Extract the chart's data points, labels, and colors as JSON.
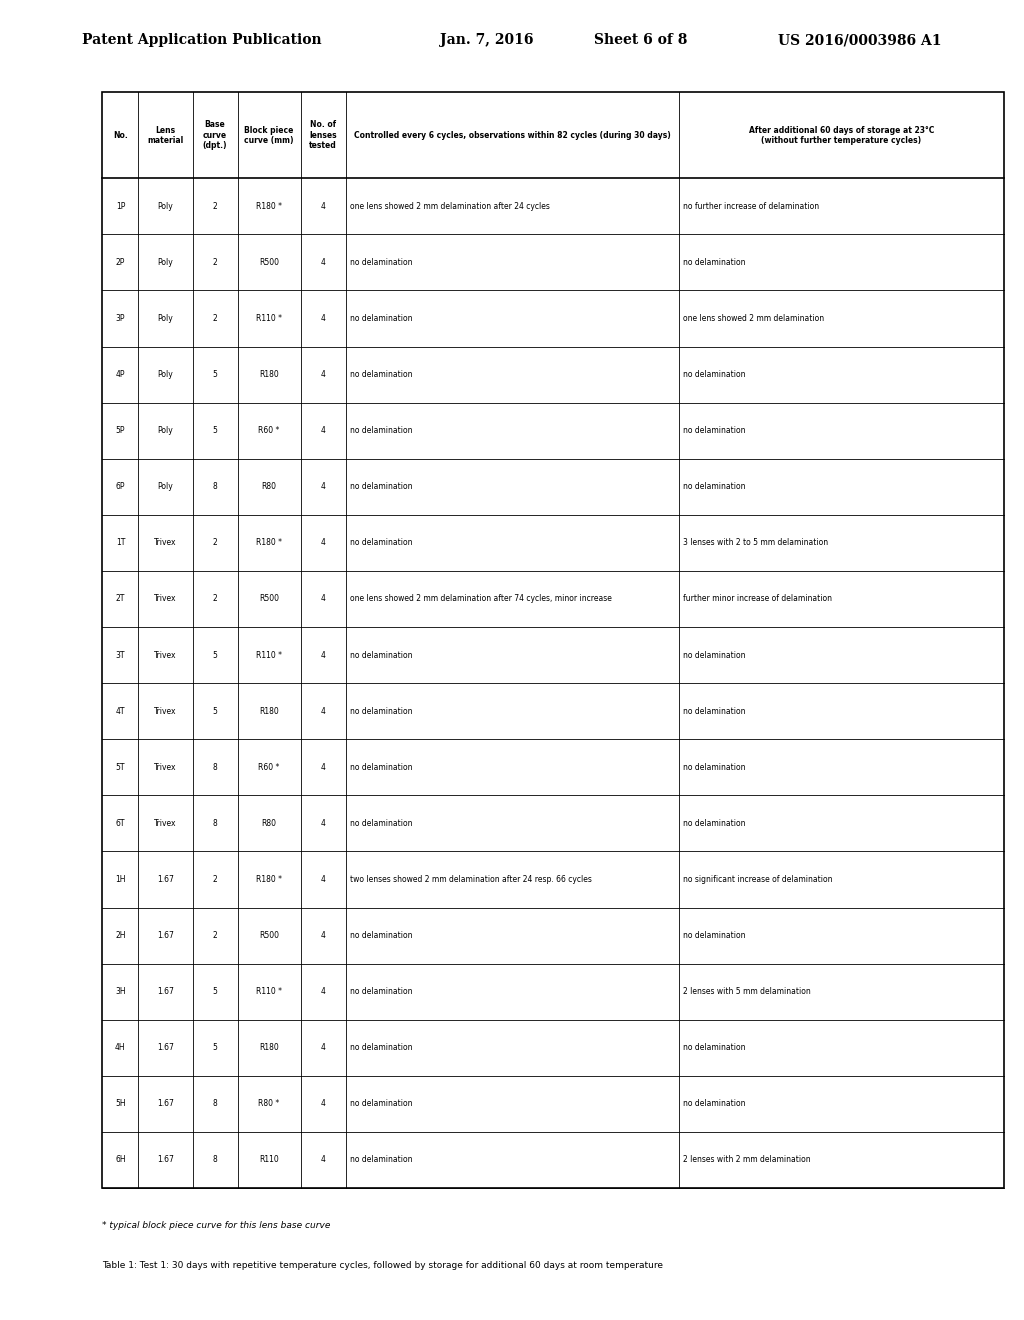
{
  "header_text": "Patent Application Publication",
  "date_text": "Jan. 7, 2016",
  "sheet_text": "Sheet 6 of 8",
  "patent_text": "US 2016/0003986 A1",
  "col_headers": [
    "No.\n",
    "Lens\nmaterial",
    "Base\ncurve\n(dpt.)",
    "Block piece\ncurve (mm)",
    "No. of\nlenses\ntested",
    "Controlled every 6 cycles, observations within 82 cycles (during 30 days)",
    "After additional 60 days of storage at 23°C\n(without further temperature cycles)"
  ],
  "rows": [
    [
      "1P",
      "Poly",
      "2",
      "R180 *",
      "4",
      "one lens showed 2 mm delamination after 24 cycles",
      "no further increase of delamination"
    ],
    [
      "2P",
      "Poly",
      "2",
      "R500",
      "4",
      "no delamination",
      "no delamination"
    ],
    [
      "3P",
      "Poly",
      "2",
      "R110 *",
      "4",
      "no delamination",
      "one lens showed 2 mm delamination"
    ],
    [
      "4P",
      "Poly",
      "5",
      "R180",
      "4",
      "no delamination",
      "no delamination"
    ],
    [
      "5P",
      "Poly",
      "5",
      "R60 *",
      "4",
      "no delamination",
      "no delamination"
    ],
    [
      "6P",
      "Poly",
      "8",
      "R80",
      "4",
      "no delamination",
      "no delamination"
    ],
    [
      "1T",
      "Trivex",
      "2",
      "R180 *",
      "4",
      "no delamination",
      "3 lenses with 2 to 5 mm delamination"
    ],
    [
      "2T",
      "Trivex",
      "2",
      "R500",
      "4",
      "one lens showed 2 mm delamination after 74 cycles, minor increase",
      "further minor increase of delamination"
    ],
    [
      "3T",
      "Trivex",
      "5",
      "R110 *",
      "4",
      "no delamination",
      "no delamination"
    ],
    [
      "4T",
      "Trivex",
      "5",
      "R180",
      "4",
      "no delamination",
      "no delamination"
    ],
    [
      "5T",
      "Trivex",
      "8",
      "R60 *",
      "4",
      "no delamination",
      "no delamination"
    ],
    [
      "6T",
      "Trivex",
      "8",
      "R80",
      "4",
      "no delamination",
      "no delamination"
    ],
    [
      "1H",
      "1.67",
      "2",
      "R180 *",
      "4",
      "two lenses showed 2 mm delamination after 24 resp. 66 cycles",
      "no significant increase of delamination"
    ],
    [
      "2H",
      "1.67",
      "2",
      "R500",
      "4",
      "no delamination",
      "no delamination"
    ],
    [
      "3H",
      "1.67",
      "5",
      "R110 *",
      "4",
      "no delamination",
      "2 lenses with 5 mm delamination"
    ],
    [
      "4H",
      "1.67",
      "5",
      "R180",
      "4",
      "no delamination",
      "no delamination"
    ],
    [
      "5H",
      "1.67",
      "8",
      "R80 *",
      "4",
      "no delamination",
      "no delamination"
    ],
    [
      "6H",
      "1.67",
      "8",
      "R110",
      "4",
      "no delamination",
      "2 lenses with 2 mm delamination"
    ]
  ],
  "footnote": "* typical block piece curve for this lens base curve",
  "table_note": "Table 1: Test 1: 30 days with repetitive temperature cycles, followed by storage for additional 60 days at room temperature"
}
